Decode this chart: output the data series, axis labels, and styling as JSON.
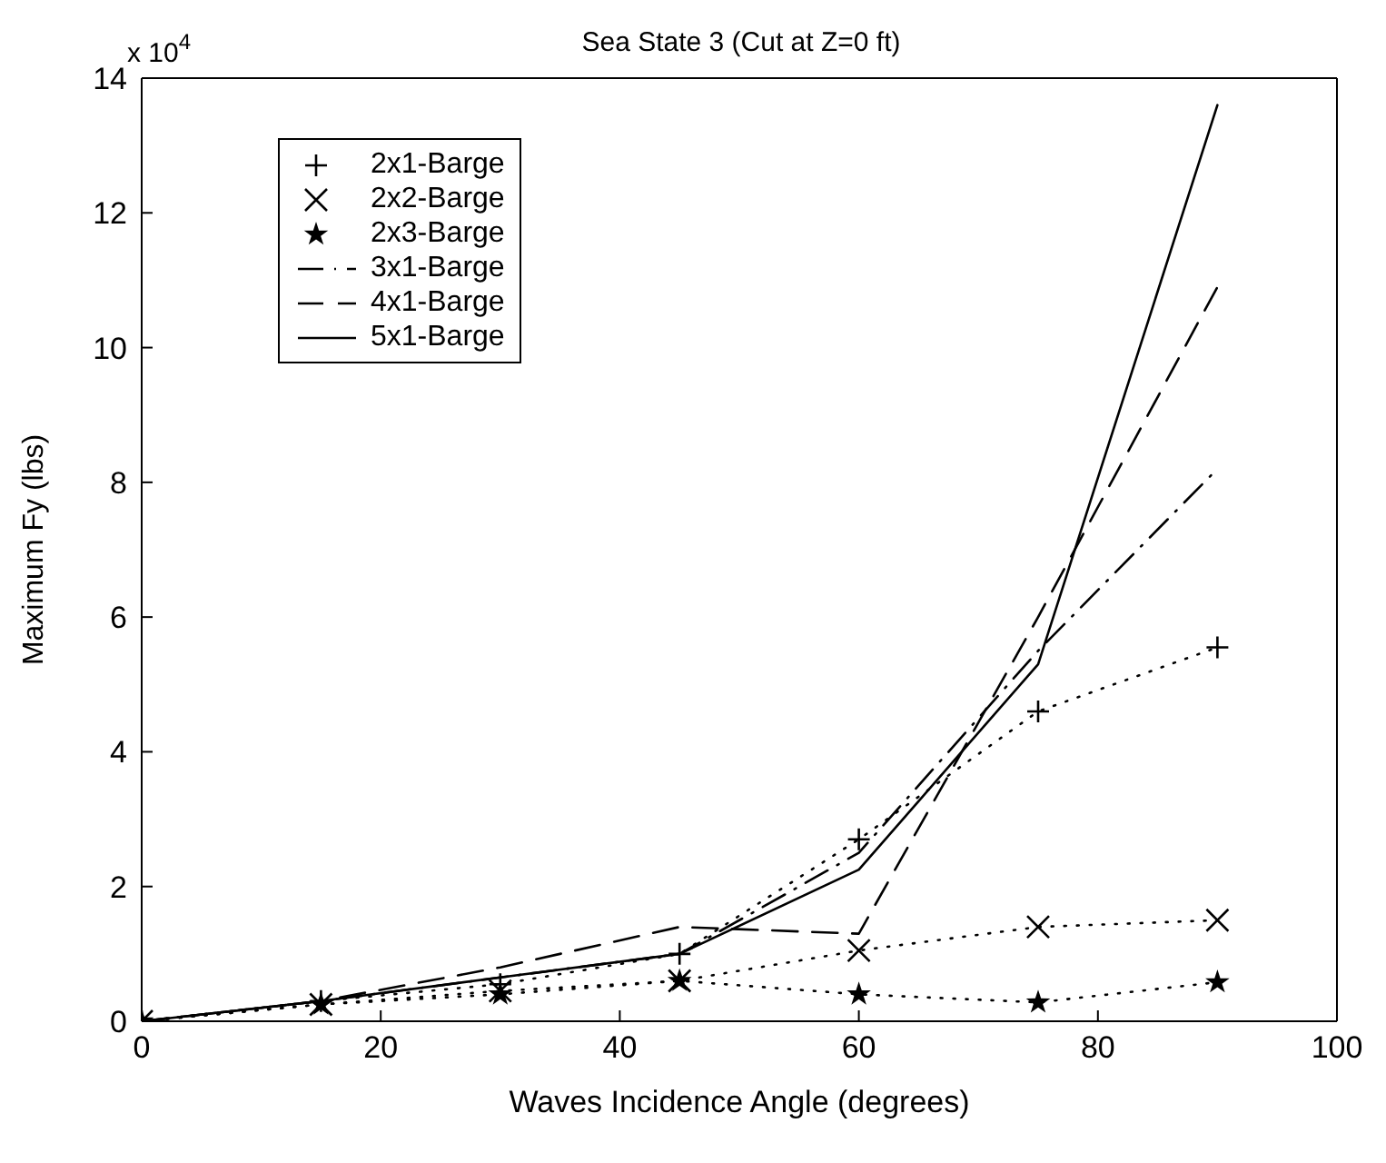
{
  "chart_data": {
    "type": "line",
    "title": "Sea State 3 (Cut at Z=0 ft)",
    "xlabel": "Waves Incidence Angle (degrees)",
    "ylabel": "Maximum Fy (lbs)",
    "annotations": [
      "x 10$^{4}$"
    ],
    "x": [
      0,
      15,
      30,
      45,
      60,
      75,
      90
    ],
    "xlim": [
      0,
      100
    ],
    "xticks": [
      0,
      20,
      40,
      60,
      80,
      100
    ],
    "ylim": [
      0,
      14
    ],
    "yticks": [
      0,
      2,
      4,
      6,
      8,
      10,
      12,
      14
    ],
    "legend": "top left",
    "series": [
      {
        "name": "2x1-Barge",
        "color": "#000000",
        "marker": "cross",
        "line_style": "dotted",
        "values": [
          0,
          0.3,
          0.55,
          1.0,
          2.7,
          4.6,
          5.55
        ]
      },
      {
        "name": "2x2-Barge",
        "color": "#000000",
        "marker": "x",
        "line_style": "dotted",
        "values": [
          0,
          0.25,
          0.45,
          0.6,
          1.05,
          1.4,
          1.5
        ]
      },
      {
        "name": "2x3-Barge",
        "color": "#000000",
        "marker": "star",
        "line_style": "dotted",
        "values": [
          0,
          0.25,
          0.4,
          0.6,
          0.4,
          0.28,
          0.58
        ]
      },
      {
        "name": "3x1-Barge",
        "color": "#000000",
        "marker": "none",
        "line_style": "dashdot",
        "values": [
          0,
          0.3,
          0.65,
          1.0,
          2.5,
          5.5,
          8.2
        ]
      },
      {
        "name": "4x1-Barge",
        "color": "#000000",
        "marker": "none",
        "line_style": "dashed",
        "values": [
          0,
          0.3,
          0.8,
          1.4,
          1.3,
          6.0,
          10.9
        ]
      },
      {
        "name": "5x1-Barge",
        "color": "#000000",
        "marker": "none",
        "line_style": "solid",
        "values": [
          0,
          0.3,
          0.65,
          1.0,
          2.25,
          5.3,
          13.6
        ]
      }
    ]
  }
}
